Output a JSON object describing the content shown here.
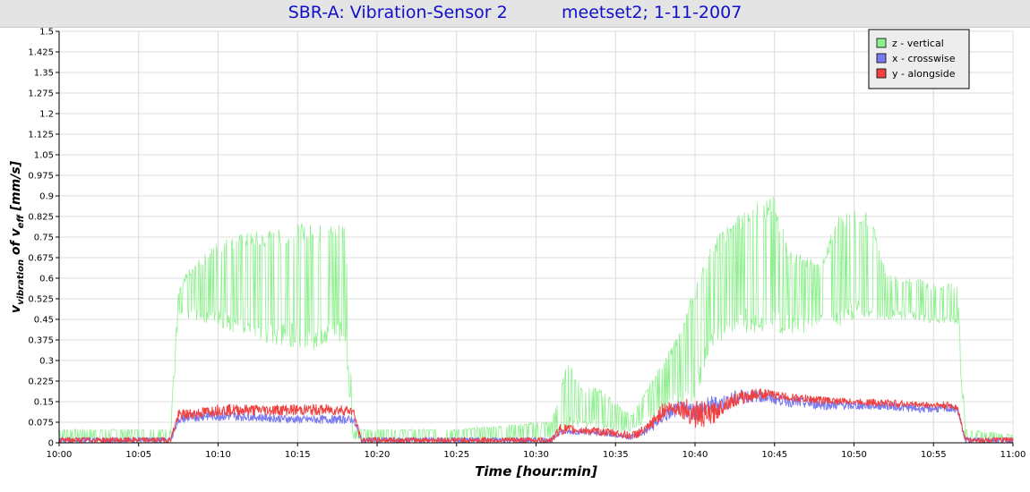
{
  "chart_data": {
    "type": "line",
    "title": "SBR-A: Vibration-Sensor 2          meetset2; 1-11-2007",
    "xlabel": "Time [hour:min]",
    "ylabel_parts": [
      "v",
      "vibration",
      " of v",
      "eff",
      " [mm/s]"
    ],
    "ylim": [
      0,
      1.5
    ],
    "xlim_min": [
      600,
      660
    ],
    "y_ticks": [
      "0",
      "0.075",
      "0.15",
      "0.225",
      "0.3",
      "0.375",
      "0.45",
      "0.525",
      "0.6",
      "0.675",
      "0.75",
      "0.825",
      "0.9",
      "0.975",
      "1.05",
      "1.125",
      "1.2",
      "1.275",
      "1.35",
      "1.425",
      "1.5"
    ],
    "x_ticks": [
      "10:00",
      "10:05",
      "10:10",
      "10:15",
      "10:20",
      "10:25",
      "10:30",
      "10:35",
      "10:40",
      "10:45",
      "10:50",
      "10:55",
      "11:00"
    ],
    "grid": true,
    "legend_position": "top-right",
    "series": [
      {
        "name": "z - vertical",
        "color": "#8ef08e",
        "x": [
          "10:00",
          "10:07",
          "10:07.5",
          "10:08",
          "10:09",
          "10:10",
          "10:11",
          "10:12",
          "10:13",
          "10:14",
          "10:15",
          "10:16",
          "10:17",
          "10:18",
          "10:18.5",
          "10:19",
          "10:25",
          "10:31",
          "10:32",
          "10:33",
          "10:34",
          "10:35",
          "10:36",
          "10:37",
          "10:38",
          "10:39",
          "10:40",
          "10:41",
          "10:42",
          "10:43",
          "10:44",
          "10:45",
          "10:46",
          "10:47",
          "10:48",
          "10:49",
          "10:50",
          "10:51",
          "10:52",
          "10:53",
          "10:54",
          "10:55",
          "10:56",
          "10:56.5",
          "10:57",
          "11:00"
        ],
        "y_low": [
          0.01,
          0.01,
          0.45,
          0.45,
          0.44,
          0.42,
          0.4,
          0.38,
          0.35,
          0.35,
          0.35,
          0.34,
          0.35,
          0.35,
          0.01,
          0.01,
          0.01,
          0.01,
          0.05,
          0.06,
          0.05,
          0.04,
          0.04,
          0.08,
          0.12,
          0.14,
          0.14,
          0.35,
          0.38,
          0.4,
          0.4,
          0.38,
          0.4,
          0.4,
          0.45,
          0.42,
          0.45,
          0.45,
          0.45,
          0.45,
          0.45,
          0.43,
          0.43,
          0.43,
          0.01,
          0.01
        ],
        "y_high": [
          0.05,
          0.05,
          0.55,
          0.62,
          0.68,
          0.74,
          0.76,
          0.77,
          0.78,
          0.78,
          0.8,
          0.8,
          0.8,
          0.82,
          0.05,
          0.05,
          0.05,
          0.08,
          0.3,
          0.2,
          0.2,
          0.15,
          0.1,
          0.2,
          0.3,
          0.4,
          0.58,
          0.72,
          0.8,
          0.85,
          0.88,
          0.9,
          0.7,
          0.68,
          0.66,
          0.84,
          0.85,
          0.84,
          0.62,
          0.6,
          0.6,
          0.58,
          0.58,
          0.58,
          0.05,
          0.03
        ]
      },
      {
        "name": "x - crosswise",
        "color": "#7a7af0",
        "x": [
          "10:00",
          "10:07",
          "10:07.5",
          "10:09",
          "10:10",
          "10:12",
          "10:15",
          "10:18",
          "10:18.5",
          "10:19",
          "10:31",
          "10:31.5",
          "10:33",
          "10:35",
          "10:36",
          "10:37",
          "10:38",
          "10:39",
          "10:40",
          "10:41",
          "10:42",
          "10:43",
          "10:44",
          "10:45",
          "10:46",
          "10:48",
          "10:50",
          "10:52",
          "10:54",
          "10:56",
          "10:56.5",
          "10:57",
          "11:00"
        ],
        "y_low": [
          0.0,
          0.0,
          0.07,
          0.08,
          0.08,
          0.08,
          0.07,
          0.07,
          0.07,
          0.0,
          0.0,
          0.03,
          0.03,
          0.02,
          0.01,
          0.03,
          0.07,
          0.1,
          0.08,
          0.1,
          0.12,
          0.14,
          0.15,
          0.14,
          0.13,
          0.12,
          0.12,
          0.12,
          0.11,
          0.11,
          0.11,
          0.0,
          0.0
        ],
        "y_high": [
          0.02,
          0.02,
          0.1,
          0.12,
          0.12,
          0.11,
          0.1,
          0.1,
          0.1,
          0.02,
          0.02,
          0.05,
          0.05,
          0.04,
          0.03,
          0.06,
          0.12,
          0.15,
          0.15,
          0.17,
          0.18,
          0.2,
          0.19,
          0.18,
          0.17,
          0.16,
          0.15,
          0.15,
          0.14,
          0.14,
          0.13,
          0.02,
          0.02
        ]
      },
      {
        "name": "y - alongside",
        "color": "#f04040",
        "x": [
          "10:00",
          "10:07",
          "10:07.5",
          "10:09",
          "10:10",
          "10:12",
          "10:15",
          "10:18",
          "10:18.5",
          "10:19",
          "10:31",
          "10:31.5",
          "10:33",
          "10:35",
          "10:36",
          "10:37",
          "10:38",
          "10:39",
          "10:40",
          "10:41",
          "10:42",
          "10:43",
          "10:44",
          "10:45",
          "10:46",
          "10:48",
          "10:50",
          "10:52",
          "10:54",
          "10:56",
          "10:56.5",
          "10:57",
          "11:00"
        ],
        "y_low": [
          0.0,
          0.0,
          0.08,
          0.09,
          0.1,
          0.1,
          0.1,
          0.1,
          0.1,
          0.0,
          0.0,
          0.03,
          0.03,
          0.02,
          0.01,
          0.03,
          0.09,
          0.1,
          0.05,
          0.06,
          0.12,
          0.14,
          0.16,
          0.16,
          0.15,
          0.14,
          0.14,
          0.13,
          0.13,
          0.12,
          0.12,
          0.0,
          0.0
        ],
        "y_high": [
          0.02,
          0.02,
          0.12,
          0.13,
          0.14,
          0.14,
          0.14,
          0.14,
          0.13,
          0.02,
          0.02,
          0.07,
          0.06,
          0.05,
          0.04,
          0.07,
          0.15,
          0.16,
          0.16,
          0.14,
          0.17,
          0.19,
          0.2,
          0.19,
          0.18,
          0.17,
          0.16,
          0.16,
          0.15,
          0.15,
          0.14,
          0.02,
          0.02
        ]
      }
    ]
  }
}
